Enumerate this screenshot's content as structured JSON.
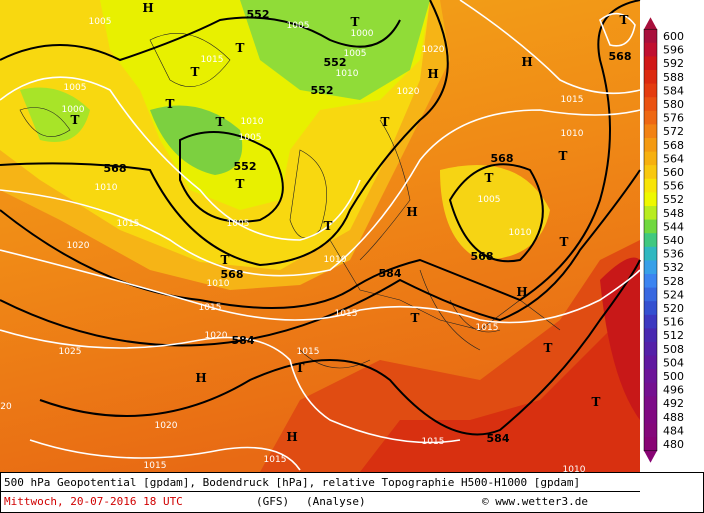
{
  "map": {
    "labels": [
      "1005",
      "H",
      "552",
      "T",
      "1000",
      "1005",
      "1005",
      "552",
      "1010",
      "552",
      "1020",
      "H",
      "1020",
      "1015",
      "T",
      "T",
      "1005",
      "1000",
      "T",
      "T",
      "T",
      "1010",
      "1005",
      "552",
      "T",
      "568",
      "1010",
      "1015",
      "1005",
      "1020",
      "T",
      "1010",
      "T",
      "568",
      "1010",
      "1015",
      "1015",
      "584",
      "H",
      "T",
      "H",
      "1015",
      "1010",
      "T",
      "568",
      "T",
      "1005",
      "1010",
      "568",
      "T",
      "H",
      "T",
      "1015",
      "1020",
      "584",
      "1025",
      "1015",
      "T",
      "H",
      "T",
      "T",
      "1020",
      "H",
      "1015",
      "584",
      "1015",
      "1015",
      "1010",
      "T",
      "568",
      "20"
    ]
  },
  "legend": {
    "labels": [
      "600",
      "596",
      "592",
      "588",
      "584",
      "580",
      "576",
      "572",
      "568",
      "564",
      "560",
      "556",
      "552",
      "548",
      "544",
      "540",
      "536",
      "532",
      "528",
      "524",
      "520",
      "516",
      "512",
      "508",
      "504",
      "500",
      "496",
      "492",
      "488",
      "484",
      "480"
    ],
    "colors": [
      "#a8103c",
      "#c01030",
      "#d01818",
      "#dc2a10",
      "#e43c10",
      "#ea5212",
      "#ee6814",
      "#f28214",
      "#f49a12",
      "#f6b010",
      "#f8c810",
      "#f8e408",
      "#eef800",
      "#b8ec20",
      "#70d840",
      "#40c880",
      "#30b8c0",
      "#38a0e8",
      "#3c84f0",
      "#3868e0",
      "#3450d0",
      "#3c38c0",
      "#4828b0",
      "#5420a8",
      "#6018a0",
      "#6c1498",
      "#741090",
      "#7c0c88",
      "#800880",
      "#84087a",
      "#880474"
    ]
  },
  "caption": {
    "line1": "500 hPa Geopotential [gpdam], Bodendruck [hPa], relative Topographie H500-H1000 [gpdam]",
    "date": "Mittwoch, 20-07-2016  18 UTC",
    "model": "(GFS)",
    "analysis": "(Analyse)",
    "credit": "© www.wetter3.de"
  }
}
